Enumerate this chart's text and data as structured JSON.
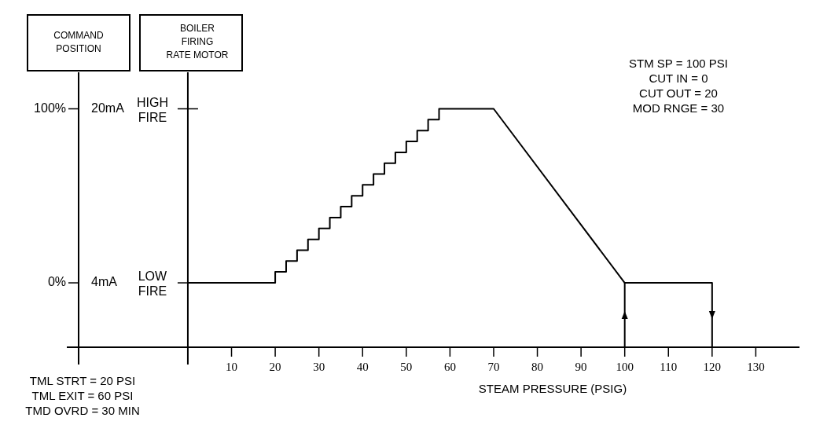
{
  "chart_data": {
    "type": "line",
    "xlabel": "STEAM PRESSURE (PSIG)",
    "ylabel": "COMMAND\nPOSITION",
    "y2label": "BOILER\nFIRING\nRATE MOTOR",
    "annotations": [
      "STM SP = 100 PSI\nCUT IN = 0\nCUT OUT = 20\nMOD RNGE = 30",
      "TML STRT = 20 PSI\nTML EXIT = 60 PSI\nTMD OVRD = 30 MIN",
      "LOW\nFIRE",
      "HIGH\nFIRE"
    ],
    "xlim": [
      -25,
      140
    ],
    "xticks": [
      10,
      20,
      30,
      40,
      50,
      60,
      70,
      80,
      90,
      100,
      110,
      120,
      130
    ],
    "ylim": [
      -37,
      121
    ],
    "yticks": [
      {
        "value": 0,
        "label": "0%"
      },
      {
        "value": 100,
        "label": "100%"
      }
    ],
    "y3lim": [
      -1.92,
      23.36
    ],
    "y3ticks": [
      {
        "value": 4,
        "label": "4mA"
      },
      {
        "value": 20,
        "label": "20mA"
      }
    ],
    "series": [
      {
        "color": "#000000",
        "x": [
          0,
          20,
          20,
          22.5,
          22.5,
          25,
          25,
          27.5,
          27.5,
          30,
          30,
          32.5,
          32.5,
          35,
          35,
          37.5,
          37.5,
          40,
          40,
          42.5,
          42.5,
          45,
          45,
          47.5,
          47.5,
          50,
          50,
          52.5,
          52.5,
          55,
          55,
          57.5,
          57.5,
          70,
          100,
          120,
          120
        ],
        "values": [
          0,
          0,
          6.3,
          6.3,
          12.5,
          12.5,
          18.8,
          18.8,
          25,
          25,
          31.3,
          31.3,
          37.5,
          37.5,
          43.8,
          43.8,
          50,
          50,
          56.3,
          56.3,
          62.5,
          62.5,
          68.8,
          68.8,
          75,
          75,
          81.3,
          81.3,
          87.5,
          87.5,
          93.8,
          93.8,
          100,
          100,
          0,
          0,
          -37
        ]
      },
      {
        "color": "#000000",
        "x": [
          100,
          100
        ],
        "values": [
          -37,
          0
        ]
      }
    ]
  }
}
